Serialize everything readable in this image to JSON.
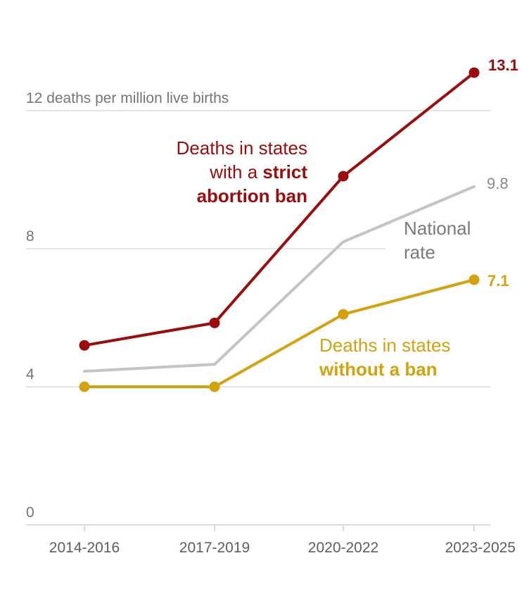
{
  "chart_data": {
    "type": "line",
    "x": [
      "2014-2016",
      "2017-2019",
      "2020-2022",
      "2023-2025"
    ],
    "ylim": [
      0,
      13.1
    ],
    "yticks": [
      0,
      4,
      8,
      12
    ],
    "ytick_labels": [
      "0",
      "4",
      "8",
      "12 deaths per million live births"
    ],
    "grid": true,
    "series": [
      {
        "key": "strict_ban",
        "values": [
          5.2,
          5.85,
          10.1,
          13.1
        ],
        "color": "#9b0d0d",
        "markers": true,
        "end_label": "13.1",
        "label_parts": [
          {
            "text": "Deaths in states",
            "bold": ""
          },
          {
            "text": "with a ",
            "bold": "strict"
          },
          {
            "text": "",
            "bold": "abortion ban"
          }
        ]
      },
      {
        "key": "national",
        "values": [
          4.45,
          4.65,
          8.2,
          9.8
        ],
        "color": "#c4c4c4",
        "markers": false,
        "end_label": "9.8",
        "label_parts": [
          {
            "text": "National",
            "bold": ""
          },
          {
            "text": "rate",
            "bold": ""
          }
        ]
      },
      {
        "key": "no_ban",
        "values": [
          4.0,
          4.0,
          6.1,
          7.1
        ],
        "color": "#d4a20f",
        "markers": true,
        "end_label": "7.1",
        "label_parts": [
          {
            "text": "Deaths in states",
            "bold": ""
          },
          {
            "text": "",
            "bold": "without a ban"
          }
        ]
      }
    ]
  }
}
